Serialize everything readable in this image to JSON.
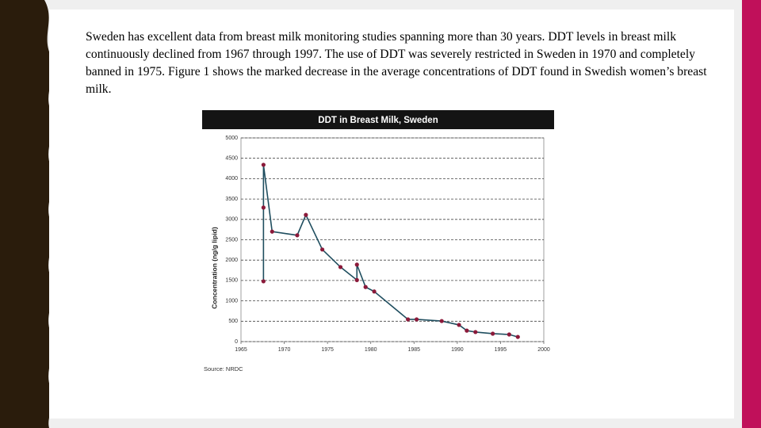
{
  "paragraph": "Sweden has excellent data from breast milk monitoring studies spanning more than 30 years. DDT levels in breast milk continuously declined from 1967 through 1997. The use of DDT was severely restricted in Sweden in 1970 and completely banned in 1975. Figure 1 shows the marked decrease in the average concentrations of DDT found in Swedish women’s breast milk.",
  "chart_data": {
    "type": "line",
    "title": "DDT in Breast Milk, Sweden",
    "y_label": "Concentration (ng/g lipid)",
    "source": "Source: NRDC",
    "x": [
      1967.6,
      1967.6,
      1967.6,
      1968.6,
      1971.5,
      1972.5,
      1974.4,
      1976.5,
      1978.4,
      1978.4,
      1979.4,
      1980.4,
      1984.3,
      1985.3,
      1988.2,
      1990.2,
      1991.1,
      1992.1,
      1994.1,
      1996.0,
      1997.0
    ],
    "series": [
      {
        "name": "DDT",
        "color": "#1f4e5f",
        "marker_color": "#8b1a3a",
        "values": [
          1480,
          3290,
          4340,
          2700,
          2610,
          3110,
          2260,
          1830,
          1510,
          1890,
          1340,
          1230,
          545,
          545,
          505,
          410,
          270,
          235,
          195,
          175,
          115
        ]
      }
    ],
    "xlim": [
      1965,
      2000
    ],
    "xticks": [
      1965,
      1970,
      1975,
      1980,
      1985,
      1990,
      1995,
      2000
    ],
    "ylim": [
      0,
      5000
    ],
    "yticks": [
      0,
      500,
      1000,
      1500,
      2000,
      2500,
      3000,
      3500,
      4000,
      4500,
      5000
    ],
    "grid": true
  }
}
